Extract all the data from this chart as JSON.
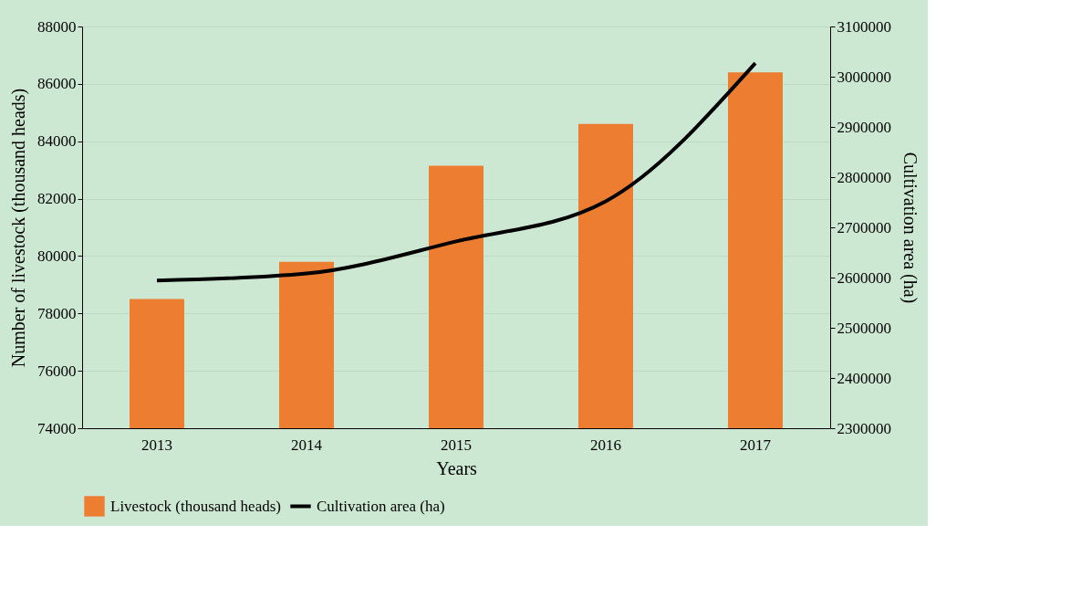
{
  "chart_data": {
    "type": "bar",
    "xlabel": "Years",
    "ylabel": "Number of livestock (thousand heads)",
    "y2label": "Cultivation area (ha)",
    "categories": [
      "2013",
      "2014",
      "2015",
      "2016",
      "2017"
    ],
    "series": [
      {
        "name": "Livestock (thousand heads)",
        "color": "#ed7d31",
        "values": [
          78500,
          79800,
          83150,
          84600,
          86400
        ]
      },
      {
        "name": "Cultivation area (ha)",
        "type": "line",
        "axis": "y2",
        "color": "#000000",
        "values": [
          2594000,
          2608000,
          2672000,
          2752000,
          3027000
        ]
      }
    ],
    "ylim": [
      74000,
      88000
    ],
    "yticks": [
      74000,
      76000,
      78000,
      80000,
      82000,
      84000,
      86000,
      88000
    ],
    "y2lim": [
      2300000,
      3100000
    ],
    "y2ticks": [
      2300000,
      2400000,
      2500000,
      2600000,
      2700000,
      2800000,
      2900000,
      3000000,
      3100000
    ],
    "grid": "y",
    "legend": "bottom"
  }
}
